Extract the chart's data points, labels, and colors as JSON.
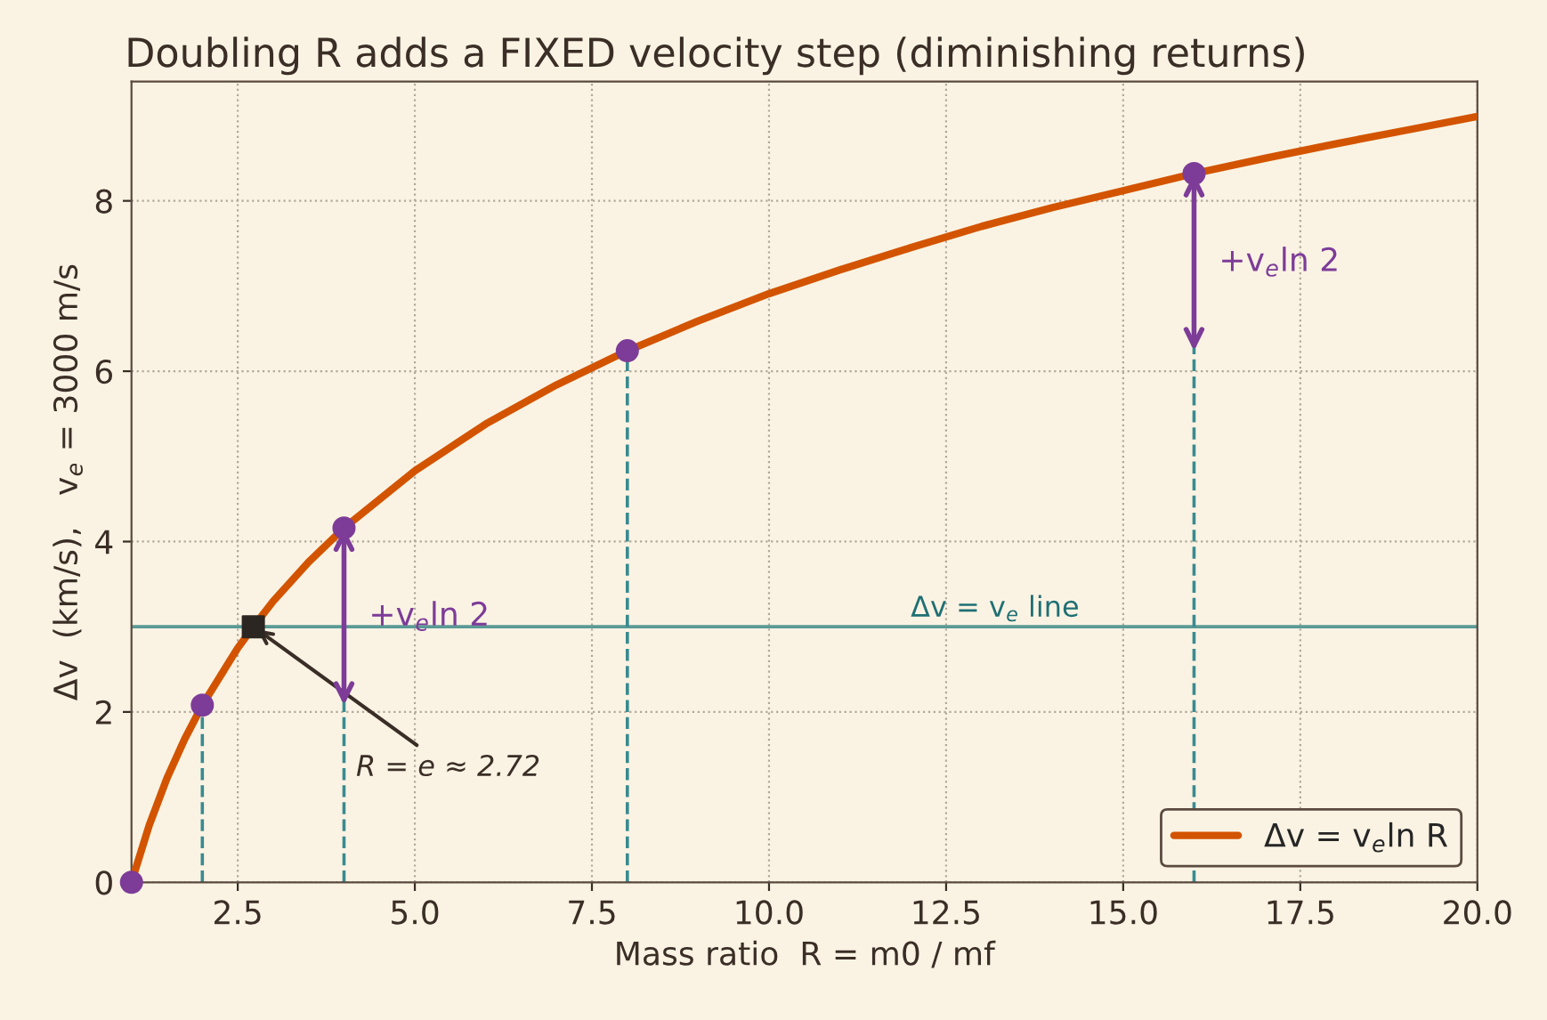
{
  "chart_data": {
    "type": "line",
    "title": "Doubling R adds a FIXED velocity step (diminishing returns)",
    "xlabel": "Mass ratio  R = m0 / mf",
    "ylabel": "Δv  (km/s),   v$_{e}$ = 3000 m/s",
    "series": [
      {
        "name": "Δv = v$_{e}$ln R",
        "color": "#d35400",
        "marker": "none",
        "x": [
          1,
          1.25,
          1.5,
          1.75,
          2,
          2.5,
          2.72,
          3,
          3.5,
          4,
          5,
          6,
          7,
          8,
          9,
          10,
          11,
          12,
          13,
          14,
          15,
          16,
          17,
          18,
          19,
          20
        ],
        "values": [
          0,
          0.67,
          1.22,
          1.68,
          2.08,
          2.75,
          3.0,
          3.3,
          3.76,
          4.16,
          4.83,
          5.38,
          5.84,
          6.24,
          6.59,
          6.91,
          7.19,
          7.45,
          7.7,
          7.92,
          8.12,
          8.32,
          8.5,
          8.67,
          8.83,
          8.99
        ]
      },
      {
        "type": "scatter",
        "color": "#7d3c98",
        "marker": "circle",
        "x": [
          1,
          2,
          4,
          8,
          16
        ],
        "values": [
          0,
          2.08,
          4.16,
          6.24,
          8.32
        ]
      },
      {
        "type": "scatter",
        "color": "#2b2622",
        "marker": "square",
        "x": [
          2.72
        ],
        "values": [
          3.0
        ]
      }
    ],
    "ref_lines": [
      {
        "axis": "y",
        "value": 3,
        "label": "Δv = v$_{e}$ line",
        "color": "#5a9a96",
        "line_style": "solid"
      },
      {
        "axis": "x",
        "value": 2,
        "color": "#3a8a90",
        "line_style": "dashed"
      },
      {
        "axis": "x",
        "value": 4,
        "color": "#3a8a90",
        "line_style": "dashed"
      },
      {
        "axis": "x",
        "value": 8,
        "color": "#3a8a90",
        "line_style": "dashed"
      },
      {
        "axis": "x",
        "value": 16,
        "color": "#3a8a90",
        "line_style": "dashed"
      }
    ],
    "annotations": [
      {
        "text": "+v$_{e}$ln 2",
        "x": 4,
        "y": 3.12
      },
      {
        "text": "+v$_{e}$ln 2",
        "x": 16,
        "y": 7.28
      },
      {
        "text": "R = e ≈ 2.72",
        "x": 2.72,
        "y": 3.0
      }
    ],
    "xlim": [
      1,
      20
    ],
    "xticks": [
      {
        "value": 2.5,
        "label": "2.5"
      },
      {
        "value": 5,
        "label": "5.0"
      },
      {
        "value": 7.5,
        "label": "7.5"
      },
      {
        "value": 10,
        "label": "10.0"
      },
      {
        "value": 12.5,
        "label": "12.5"
      },
      {
        "value": 15,
        "label": "15.0"
      },
      {
        "value": 17.5,
        "label": "17.5"
      },
      {
        "value": 20,
        "label": "20.0"
      }
    ],
    "ylim": [
      0,
      9.4
    ],
    "yticks": [
      0,
      2,
      4,
      6,
      8
    ],
    "grid": true,
    "legend": "bottom right"
  }
}
